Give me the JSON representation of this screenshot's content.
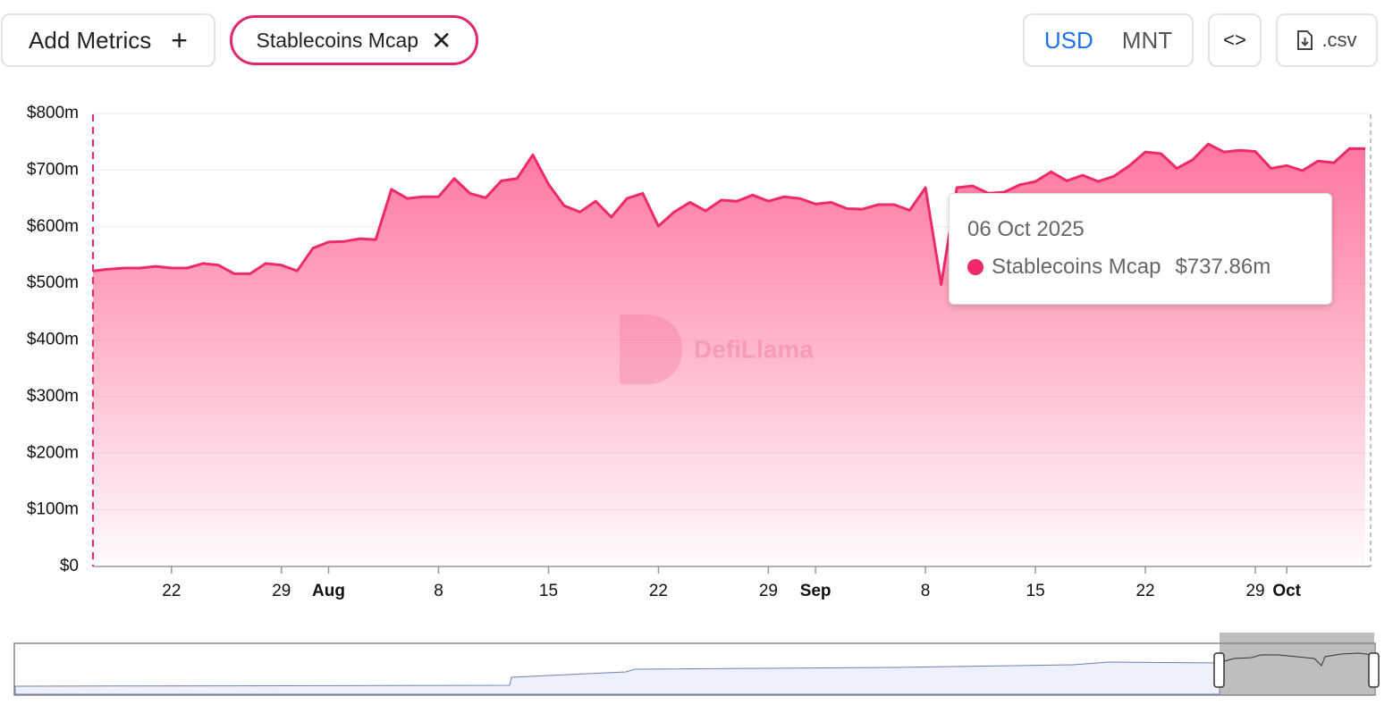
{
  "toolbar": {
    "add_metrics": "Add Metrics",
    "chip": "Stablecoins Mcap",
    "currencies": [
      "USD",
      "MNT"
    ],
    "csv": ".csv"
  },
  "watermark": "DefiLlama",
  "tooltip": {
    "date": "06 Oct 2025",
    "value": "$737.86m"
  },
  "chart_data": {
    "type": "area",
    "x": [
      "2025-07-17",
      "2025-07-18",
      "2025-07-19",
      "2025-07-20",
      "2025-07-21",
      "2025-07-22",
      "2025-07-23",
      "2025-07-24",
      "2025-07-25",
      "2025-07-26",
      "2025-07-27",
      "2025-07-28",
      "2025-07-29",
      "2025-07-30",
      "2025-07-31",
      "2025-08-01",
      "2025-08-02",
      "2025-08-03",
      "2025-08-04",
      "2025-08-05",
      "2025-08-06",
      "2025-08-07",
      "2025-08-08",
      "2025-08-09",
      "2025-08-10",
      "2025-08-11",
      "2025-08-12",
      "2025-08-13",
      "2025-08-14",
      "2025-08-15",
      "2025-08-16",
      "2025-08-17",
      "2025-08-18",
      "2025-08-19",
      "2025-08-20",
      "2025-08-21",
      "2025-08-22",
      "2025-08-23",
      "2025-08-24",
      "2025-08-25",
      "2025-08-26",
      "2025-08-27",
      "2025-08-28",
      "2025-08-29",
      "2025-08-30",
      "2025-08-31",
      "2025-09-01",
      "2025-09-02",
      "2025-09-03",
      "2025-09-04",
      "2025-09-05",
      "2025-09-06",
      "2025-09-07",
      "2025-09-08",
      "2025-09-09",
      "2025-09-10",
      "2025-09-11",
      "2025-09-12",
      "2025-09-13",
      "2025-09-14",
      "2025-09-15",
      "2025-09-16",
      "2025-09-17",
      "2025-09-18",
      "2025-09-19",
      "2025-09-20",
      "2025-09-21",
      "2025-09-22",
      "2025-09-23",
      "2025-09-24",
      "2025-09-25",
      "2025-09-26",
      "2025-09-27",
      "2025-09-28",
      "2025-09-29",
      "2025-09-30",
      "2025-10-01",
      "2025-10-02",
      "2025-10-03",
      "2025-10-04",
      "2025-10-05",
      "2025-10-06"
    ],
    "series": [
      {
        "name": "Stablecoins Mcap",
        "color": "#ee2a6b",
        "values": [
          522,
          525,
          527,
          527,
          530,
          527,
          527,
          535,
          532,
          517,
          517,
          535,
          532,
          522,
          562,
          573,
          574,
          579,
          577,
          666,
          650,
          653,
          653,
          685,
          659,
          651,
          681,
          685,
          727,
          675,
          637,
          626,
          645,
          617,
          650,
          659,
          601,
          626,
          643,
          628,
          647,
          645,
          656,
          645,
          653,
          650,
          640,
          643,
          632,
          631,
          639,
          639,
          629,
          669,
          498,
          669,
          672,
          659,
          661,
          674,
          680,
          697,
          681,
          691,
          680,
          689,
          708,
          732,
          729,
          703,
          718,
          746,
          732,
          735,
          733,
          703,
          708,
          699,
          716,
          713,
          738,
          737.86
        ]
      }
    ],
    "xlim": [
      "2025-07-17",
      "2025-10-06"
    ],
    "xticks": [
      {
        "value": "2025-07-22",
        "label": "22"
      },
      {
        "value": "2025-07-29",
        "label": "29"
      },
      {
        "value": "2025-08-01",
        "label": "Aug"
      },
      {
        "value": "2025-08-08",
        "label": "8"
      },
      {
        "value": "2025-08-15",
        "label": "15"
      },
      {
        "value": "2025-08-22",
        "label": "22"
      },
      {
        "value": "2025-08-29",
        "label": "29"
      },
      {
        "value": "2025-09-01",
        "label": "Sep"
      },
      {
        "value": "2025-09-08",
        "label": "8"
      },
      {
        "value": "2025-09-15",
        "label": "15"
      },
      {
        "value": "2025-09-22",
        "label": "22"
      },
      {
        "value": "2025-09-29",
        "label": "29"
      },
      {
        "value": "2025-10-01",
        "label": "Oct"
      }
    ],
    "ylim": [
      0,
      800
    ],
    "yticks": [
      {
        "value": 0,
        "label": "$0"
      },
      {
        "value": 100,
        "label": "$100m"
      },
      {
        "value": 200,
        "label": "$200m"
      },
      {
        "value": 300,
        "label": "$300m"
      },
      {
        "value": 400,
        "label": "$400m"
      },
      {
        "value": 500,
        "label": "$500m"
      },
      {
        "value": 600,
        "label": "$600m"
      },
      {
        "value": 700,
        "label": "$700m"
      },
      {
        "value": 800,
        "label": "$800m"
      }
    ],
    "grid": true
  }
}
